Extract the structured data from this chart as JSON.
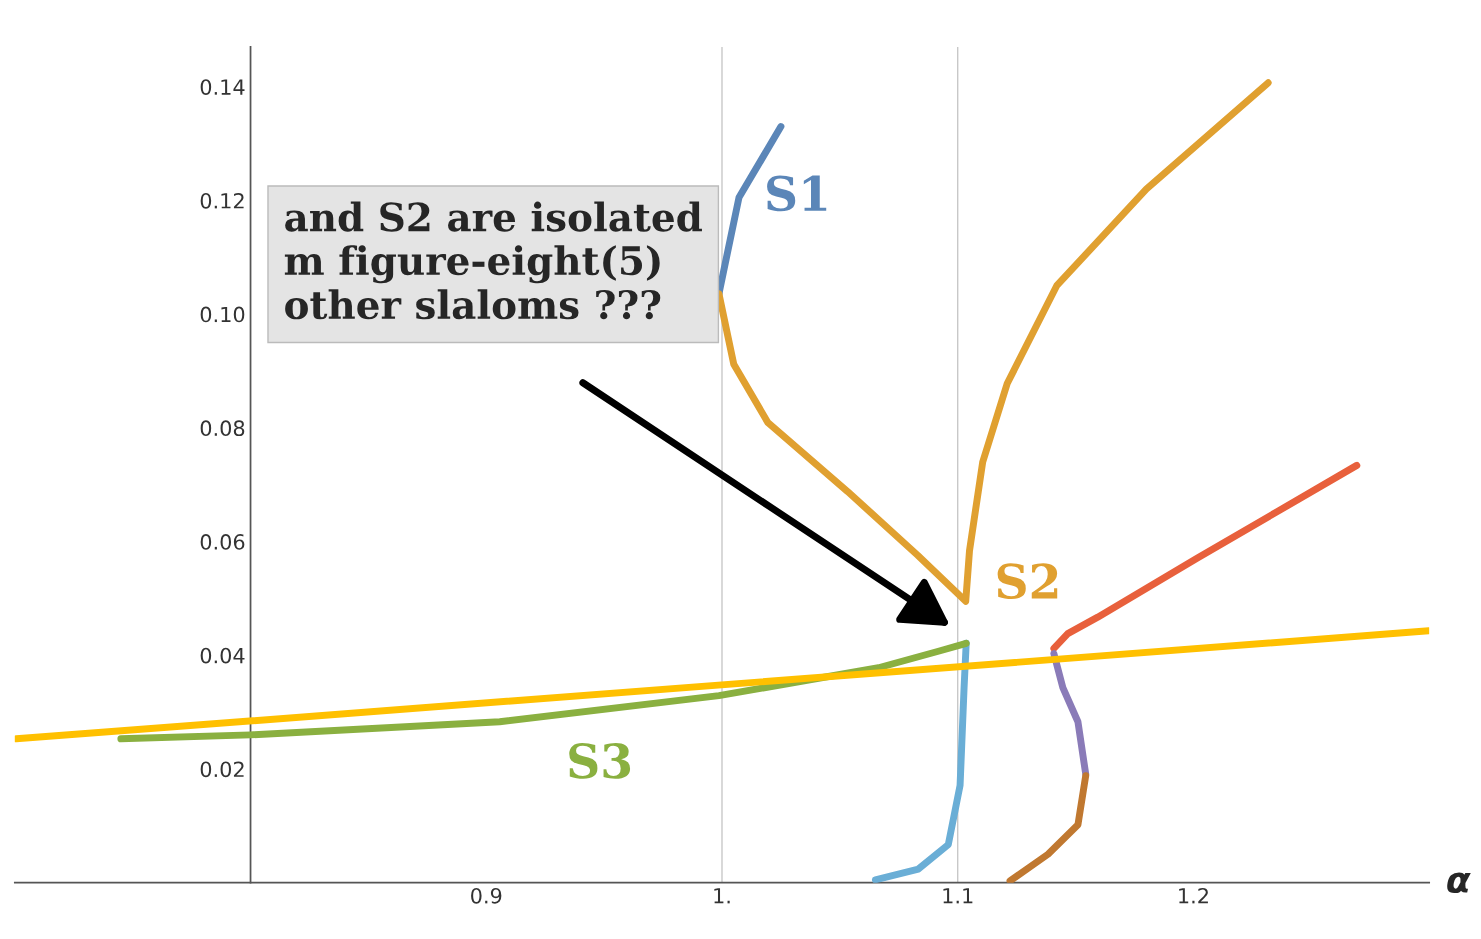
{
  "chart_data": {
    "type": "line",
    "xlabel": "α",
    "xlim": [
      0.7,
      1.3
    ],
    "ylim": [
      0,
      0.147
    ],
    "xticks": [
      0.9,
      {
        "value": 1.0,
        "label": "1."
      },
      1.1,
      1.2
    ],
    "yticks": [
      0.02,
      0.04,
      0.06,
      0.08,
      {
        "value": 0.1,
        "label": "0.10"
      },
      0.12,
      0.14
    ],
    "grid": false,
    "ref_lines": [
      {
        "axis": "x",
        "value": 1.0,
        "color": "#c8c8c8"
      },
      {
        "axis": "x",
        "value": 1.1,
        "color": "#c8c8c8"
      }
    ],
    "annotations": [
      "and S2 are isolated\nm figure-eight(5)\nother slaloms ???"
    ],
    "series": [
      {
        "name": "S1",
        "color": "#5b86b8",
        "x": [
          0.9987,
          1.0072,
          1.025
        ],
        "values": [
          0.1036,
          0.1205,
          0.133
        ]
      },
      {
        "name": "S2",
        "color": "#e0a030",
        "x": [
          0.9987,
          1.005,
          1.0195,
          1.0533,
          1.083,
          1.1034,
          1.105,
          1.1106,
          1.121,
          1.142,
          1.18,
          1.2317
        ],
        "values": [
          0.1036,
          0.0912,
          0.0809,
          0.0688,
          0.0576,
          0.0495,
          0.0584,
          0.074,
          0.0878,
          0.105,
          0.122,
          0.1407
        ]
      },
      {
        "color": "#e8603c",
        "x": [
          1.1408,
          1.1467,
          1.1594,
          1.2017,
          1.2693
        ],
        "values": [
          0.0412,
          0.0438,
          0.0467,
          0.0571,
          0.0734
        ]
      },
      {
        "color": "#8a7bb8",
        "x": [
          1.1408,
          1.1446,
          1.151,
          1.1543
        ],
        "values": [
          0.0403,
          0.0343,
          0.0283,
          0.0191
        ]
      },
      {
        "color": "#c07830",
        "x": [
          1.1543,
          1.151,
          1.1383,
          1.1222
        ],
        "values": [
          0.0188,
          0.0102,
          0.005,
          0.0003
        ]
      },
      {
        "color": "#6aaed6",
        "x": [
          1.1036,
          1.1027,
          1.101,
          1.096,
          1.0833,
          1.0651
        ],
        "values": [
          0.0421,
          0.0343,
          0.0171,
          0.0067,
          0.0024,
          0.0005
        ]
      },
      {
        "name": "S3",
        "color": "#8ab040",
        "x": [
          0.745,
          0.8,
          0.9057,
          0.9987,
          1.0664,
          1.0918,
          1.1036
        ],
        "values": [
          0.0253,
          0.026,
          0.0283,
          0.0329,
          0.0378,
          0.0407,
          0.0421
        ]
      },
      {
        "color": "#ffc000",
        "x": [
          0.7006,
          1.2998
        ],
        "values": [
          0.0253,
          0.0443
        ]
      }
    ]
  }
}
